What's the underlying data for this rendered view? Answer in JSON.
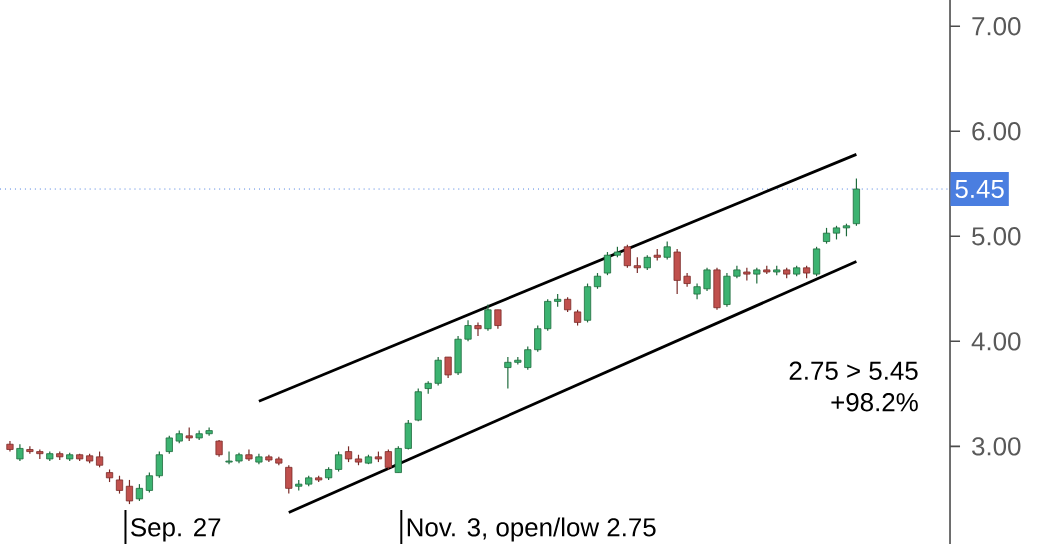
{
  "chart_data": {
    "type": "candlestick",
    "categories": [
      null,
      null,
      null,
      null,
      null,
      null,
      null,
      null,
      null,
      null,
      null,
      null,
      null,
      null,
      null,
      null,
      null,
      null,
      null,
      null,
      null,
      null,
      null,
      null,
      null,
      null,
      null,
      null,
      null,
      null,
      null,
      null,
      null,
      null,
      null,
      null,
      null,
      null,
      null,
      null,
      null,
      null,
      null,
      null,
      null,
      null,
      null,
      null,
      null,
      null,
      null,
      null,
      null,
      null,
      null,
      null,
      null,
      null,
      null,
      null,
      null,
      null,
      null,
      null,
      null,
      null,
      null,
      null,
      null,
      null,
      null,
      null,
      null,
      null,
      null,
      null,
      null,
      null,
      null,
      null,
      null,
      null,
      null,
      null,
      null,
      null
    ],
    "ohlc": [
      [
        3.02,
        3.05,
        2.95,
        2.97
      ],
      [
        2.88,
        3.02,
        2.86,
        2.98
      ],
      [
        2.97,
        3.0,
        2.93,
        2.95
      ],
      [
        2.95,
        2.97,
        2.88,
        2.93
      ],
      [
        2.88,
        2.95,
        2.86,
        2.93
      ],
      [
        2.93,
        2.95,
        2.87,
        2.9
      ],
      [
        2.88,
        2.94,
        2.86,
        2.92
      ],
      [
        2.92,
        2.93,
        2.86,
        2.88
      ],
      [
        2.91,
        2.93,
        2.84,
        2.86
      ],
      [
        2.9,
        2.95,
        2.8,
        2.82
      ],
      [
        2.75,
        2.78,
        2.66,
        2.7
      ],
      [
        2.68,
        2.72,
        2.55,
        2.58
      ],
      [
        2.62,
        2.68,
        2.45,
        2.48
      ],
      [
        2.5,
        2.64,
        2.48,
        2.6
      ],
      [
        2.58,
        2.75,
        2.56,
        2.72
      ],
      [
        2.72,
        2.95,
        2.7,
        2.92
      ],
      [
        2.95,
        3.1,
        2.93,
        3.08
      ],
      [
        3.05,
        3.15,
        3.03,
        3.12
      ],
      [
        3.1,
        3.18,
        3.05,
        3.08
      ],
      [
        3.08,
        3.15,
        3.06,
        3.12
      ],
      [
        3.12,
        3.18,
        3.1,
        3.15
      ],
      [
        3.05,
        3.06,
        2.9,
        2.92
      ],
      [
        2.85,
        2.95,
        2.83,
        2.86
      ],
      [
        2.86,
        2.94,
        2.84,
        2.92
      ],
      [
        2.92,
        2.97,
        2.86,
        2.88
      ],
      [
        2.85,
        2.93,
        2.83,
        2.9
      ],
      [
        2.9,
        2.92,
        2.85,
        2.87
      ],
      [
        2.88,
        2.9,
        2.82,
        2.84
      ],
      [
        2.8,
        2.82,
        2.55,
        2.6
      ],
      [
        2.62,
        2.68,
        2.58,
        2.64
      ],
      [
        2.64,
        2.72,
        2.62,
        2.7
      ],
      [
        2.7,
        2.72,
        2.66,
        2.68
      ],
      [
        2.7,
        2.8,
        2.68,
        2.78
      ],
      [
        2.78,
        2.95,
        2.76,
        2.92
      ],
      [
        2.95,
        3.0,
        2.85,
        2.88
      ],
      [
        2.88,
        2.92,
        2.82,
        2.85
      ],
      [
        2.84,
        2.92,
        2.83,
        2.9
      ],
      [
        2.9,
        2.95,
        2.85,
        2.88
      ],
      [
        2.95,
        2.97,
        2.78,
        2.8
      ],
      [
        2.75,
        3.0,
        2.75,
        2.98
      ],
      [
        2.98,
        3.25,
        2.97,
        3.22
      ],
      [
        3.25,
        3.55,
        3.24,
        3.52
      ],
      [
        3.55,
        3.62,
        3.5,
        3.6
      ],
      [
        3.6,
        3.85,
        3.58,
        3.82
      ],
      [
        3.85,
        3.85,
        3.65,
        3.68
      ],
      [
        3.7,
        4.05,
        3.68,
        4.02
      ],
      [
        4.02,
        4.2,
        4.0,
        4.15
      ],
      [
        4.15,
        4.18,
        4.05,
        4.12
      ],
      [
        4.12,
        4.35,
        4.1,
        4.3
      ],
      [
        4.3,
        4.3,
        4.12,
        4.15
      ],
      [
        3.75,
        3.85,
        3.55,
        3.8
      ],
      [
        3.8,
        3.85,
        3.78,
        3.82
      ],
      [
        3.75,
        3.95,
        3.73,
        3.92
      ],
      [
        3.92,
        4.15,
        3.9,
        4.12
      ],
      [
        4.12,
        4.4,
        4.1,
        4.38
      ],
      [
        4.38,
        4.45,
        4.33,
        4.4
      ],
      [
        4.4,
        4.42,
        4.28,
        4.3
      ],
      [
        4.28,
        4.3,
        4.15,
        4.18
      ],
      [
        4.2,
        4.55,
        4.18,
        4.52
      ],
      [
        4.52,
        4.65,
        4.5,
        4.62
      ],
      [
        4.65,
        4.85,
        4.63,
        4.82
      ],
      [
        4.82,
        4.9,
        4.8,
        4.85
      ],
      [
        4.9,
        4.92,
        4.7,
        4.72
      ],
      [
        4.72,
        4.8,
        4.65,
        4.7
      ],
      [
        4.7,
        4.82,
        4.68,
        4.8
      ],
      [
        4.82,
        4.88,
        4.77,
        4.8
      ],
      [
        4.8,
        4.95,
        4.78,
        4.9
      ],
      [
        4.85,
        4.88,
        4.45,
        4.58
      ],
      [
        4.62,
        4.65,
        4.52,
        4.55
      ],
      [
        4.45,
        4.55,
        4.4,
        4.52
      ],
      [
        4.5,
        4.7,
        4.48,
        4.68
      ],
      [
        4.68,
        4.7,
        4.3,
        4.32
      ],
      [
        4.35,
        4.65,
        4.33,
        4.62
      ],
      [
        4.62,
        4.72,
        4.6,
        4.68
      ],
      [
        4.66,
        4.7,
        4.58,
        4.64
      ],
      [
        4.64,
        4.7,
        4.55,
        4.68
      ],
      [
        4.68,
        4.72,
        4.64,
        4.66
      ],
      [
        4.66,
        4.72,
        4.63,
        4.68
      ],
      [
        4.68,
        4.7,
        4.6,
        4.64
      ],
      [
        4.64,
        4.72,
        4.62,
        4.7
      ],
      [
        4.7,
        4.72,
        4.6,
        4.65
      ],
      [
        4.64,
        4.9,
        4.62,
        4.88
      ],
      [
        4.95,
        5.08,
        4.93,
        5.03
      ],
      [
        5.03,
        5.1,
        4.97,
        5.08
      ],
      [
        5.08,
        5.12,
        5.0,
        5.1
      ],
      [
        5.12,
        5.55,
        5.1,
        5.45
      ]
    ],
    "series": [
      {
        "type": "line",
        "values": [
          null,
          null,
          null,
          null,
          null,
          null,
          null,
          null,
          null,
          null,
          null,
          null,
          null,
          null,
          null,
          null,
          null,
          null,
          null,
          null,
          null,
          null,
          null,
          null,
          null,
          3.43,
          null,
          null,
          null,
          null,
          null,
          null,
          null,
          null,
          null,
          null,
          null,
          null,
          null,
          null,
          null,
          null,
          null,
          null,
          null,
          null,
          null,
          null,
          null,
          null,
          null,
          null,
          null,
          null,
          null,
          null,
          null,
          null,
          null,
          null,
          null,
          null,
          null,
          null,
          null,
          null,
          null,
          null,
          null,
          null,
          null,
          null,
          null,
          null,
          null,
          null,
          null,
          null,
          null,
          null,
          null,
          null,
          null,
          null,
          null,
          5.78
        ],
        "color": "#000000"
      },
      {
        "type": "line",
        "values": [
          null,
          null,
          null,
          null,
          null,
          null,
          null,
          null,
          null,
          null,
          null,
          null,
          null,
          null,
          null,
          null,
          null,
          null,
          null,
          null,
          null,
          null,
          null,
          null,
          null,
          null,
          null,
          null,
          2.37,
          null,
          null,
          null,
          null,
          null,
          null,
          null,
          null,
          null,
          null,
          null,
          null,
          null,
          null,
          null,
          null,
          null,
          null,
          null,
          null,
          null,
          null,
          null,
          null,
          null,
          null,
          null,
          null,
          null,
          null,
          null,
          null,
          null,
          null,
          null,
          null,
          null,
          null,
          null,
          null,
          null,
          null,
          null,
          null,
          null,
          null,
          null,
          null,
          null,
          null,
          null,
          null,
          null,
          null,
          null,
          null,
          4.76
        ],
        "color": "#000000"
      }
    ],
    "ylim": [
      2.07,
      7.25
    ],
    "yticks": [
      {
        "value": 3,
        "label": "3.00"
      },
      {
        "value": 4,
        "label": "4.00"
      },
      {
        "value": 5,
        "label": "5.00"
      },
      {
        "value": 6,
        "label": "6.00"
      },
      {
        "value": 7,
        "label": "7.00"
      }
    ],
    "tick_labels": "y",
    "ref_lines": [
      {
        "axis": "y",
        "value": 5.45,
        "label": "5.45",
        "color": "#4a7ee0",
        "line_style": "dotted"
      }
    ],
    "annotations": [
      "Sep. 27",
      "Nov. 3, open/low 2.75",
      "2.75 > 5.45",
      "+98.2%"
    ]
  }
}
